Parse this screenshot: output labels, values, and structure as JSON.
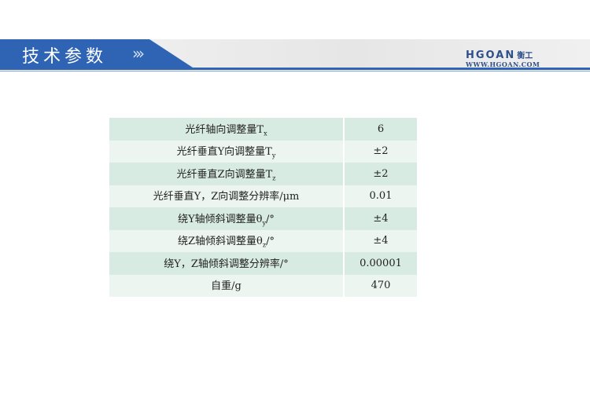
{
  "header": {
    "title": "技术参数",
    "chevrons": "›››",
    "logo": "HGOAN",
    "logo_cn": "衡工",
    "url": "WWW.HGOAN.COM"
  },
  "colors": {
    "brand_blue": "#2f64b4",
    "row_odd": "#d8ebe2",
    "row_even": "#edf5f0"
  },
  "table": {
    "rows": [
      {
        "label": "光纤轴向调整量T",
        "sub": "x",
        "suffix": "",
        "value": "6"
      },
      {
        "label": "光纤垂直Y向调整量T",
        "sub": "y",
        "suffix": "",
        "value": "±2"
      },
      {
        "label": "光纤垂直Z向调整量T",
        "sub": "z",
        "suffix": "",
        "value": "±2"
      },
      {
        "label": "光纤垂直Y，Z向调整分辨率/μm",
        "sub": "",
        "suffix": "",
        "value": "0.01"
      },
      {
        "label": "绕Y轴倾斜调整量θ",
        "sub": "y",
        "suffix": "/°",
        "value": "±4"
      },
      {
        "label": "绕Z轴倾斜调整量θ",
        "sub": "z",
        "suffix": "/°",
        "value": "±4"
      },
      {
        "label": "绕Y，Z轴倾斜调整分辨率/°",
        "sub": "",
        "suffix": "",
        "value": "0.00001"
      },
      {
        "label": "自重/g",
        "sub": "",
        "suffix": "",
        "value": "470"
      }
    ]
  }
}
